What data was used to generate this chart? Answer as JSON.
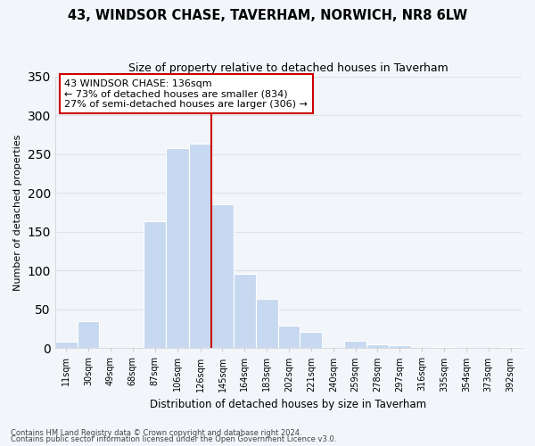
{
  "title": "43, WINDSOR CHASE, TAVERHAM, NORWICH, NR8 6LW",
  "subtitle": "Size of property relative to detached houses in Taverham",
  "xlabel": "Distribution of detached houses by size in Taverham",
  "ylabel": "Number of detached properties",
  "annotation_line1": "43 WINDSOR CHASE: 136sqm",
  "annotation_line2": "← 73% of detached houses are smaller (834)",
  "annotation_line3": "27% of semi-detached houses are larger (306) →",
  "bin_edges": [
    11,
    30,
    49,
    68,
    87,
    106,
    126,
    145,
    164,
    183,
    202,
    221,
    240,
    259,
    278,
    297,
    316,
    335,
    354,
    373,
    392
  ],
  "bin_labels": [
    "11sqm",
    "30sqm",
    "49sqm",
    "68sqm",
    "87sqm",
    "106sqm",
    "126sqm",
    "145sqm",
    "164sqm",
    "183sqm",
    "202sqm",
    "221sqm",
    "240sqm",
    "259sqm",
    "278sqm",
    "297sqm",
    "316sqm",
    "335sqm",
    "354sqm",
    "373sqm",
    "392sqm"
  ],
  "counts": [
    8,
    35,
    0,
    0,
    163,
    258,
    263,
    185,
    96,
    63,
    29,
    21,
    0,
    10,
    5,
    4,
    0,
    2,
    0,
    0,
    2
  ],
  "bar_color": "#c6d9f0",
  "vline_color": "#cc0000",
  "vline_x": 145,
  "ylim": [
    0,
    350
  ],
  "yticks": [
    0,
    50,
    100,
    150,
    200,
    250,
    300,
    350
  ],
  "footer_line1": "Contains HM Land Registry data © Crown copyright and database right 2024.",
  "footer_line2": "Contains public sector information licensed under the Open Government Licence v3.0.",
  "bg_color": "#f2f5f9",
  "plot_bg_color": "#f2f5f9",
  "grid_color": "#dde3eb"
}
